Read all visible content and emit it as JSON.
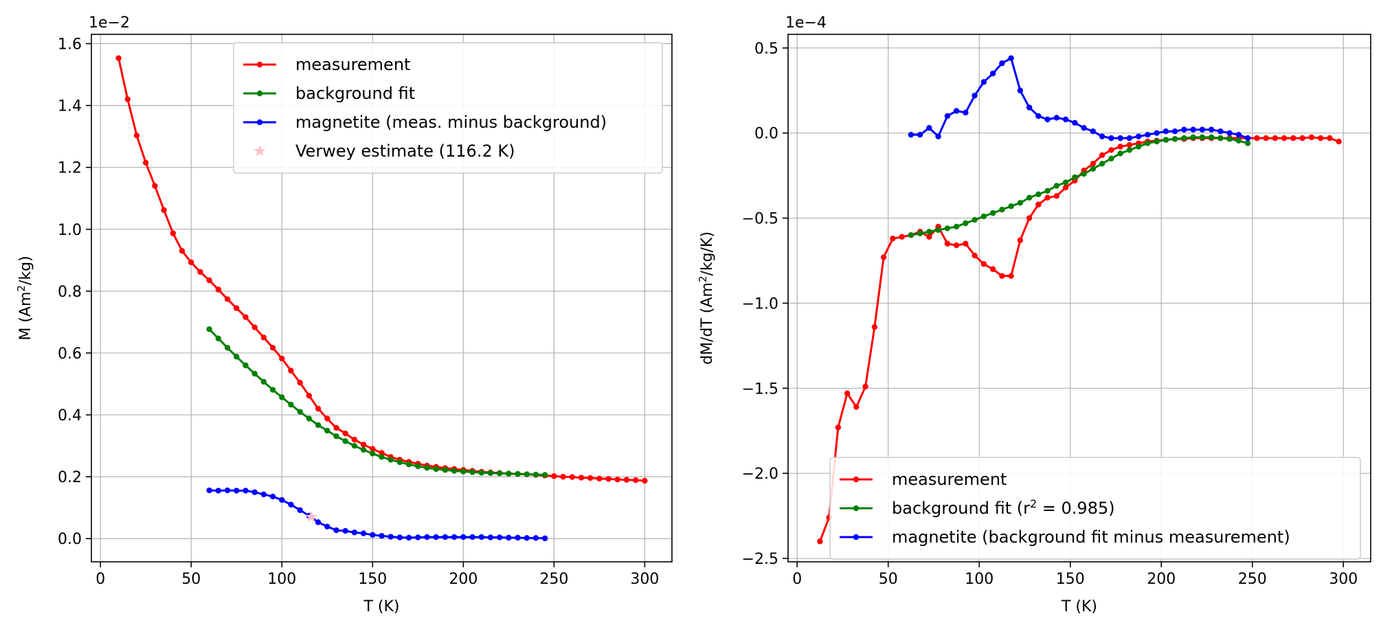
{
  "chart_data": [
    {
      "type": "line",
      "xlabel": "T (K)",
      "ylabel": "M (Am²/kg)",
      "ylabel_main": "M (Am",
      "ylabel_sup": "2",
      "ylabel_tail": "/kg)",
      "offset_label": "1e−2",
      "xlim": [
        -5,
        315
      ],
      "ylim": [
        -0.075,
        1.63
      ],
      "y_scale_note": "values in units of 1e-2",
      "xticks": [
        0,
        50,
        100,
        150,
        200,
        250,
        300
      ],
      "yticks": [
        0.0,
        0.2,
        0.4,
        0.6,
        0.8,
        1.0,
        1.2,
        1.4,
        1.6
      ],
      "ytick_labels": [
        "0.0",
        "0.2",
        "0.4",
        "0.6",
        "0.8",
        "1.0",
        "1.2",
        "1.4",
        "1.6"
      ],
      "grid": true,
      "legend_position": "upper-right",
      "legend_items": [
        {
          "text": "measurement",
          "color": "#ff0000",
          "marker": "line"
        },
        {
          "text": "background fit",
          "color": "#008000",
          "marker": "line"
        },
        {
          "text": "magnetite (meas. minus background)",
          "color": "#0000ff",
          "marker": "line"
        },
        {
          "text": "Verwey estimate (116.2 K)",
          "color": "#ffc0cb",
          "marker": "star"
        }
      ],
      "series": [
        {
          "name": "measurement",
          "color": "#ff0000",
          "x": [
            10,
            15,
            20,
            25,
            30,
            35,
            40,
            45,
            50,
            55,
            60,
            65,
            70,
            75,
            80,
            85,
            90,
            95,
            100,
            105,
            110,
            115,
            120,
            125,
            130,
            135,
            140,
            145,
            150,
            155,
            160,
            165,
            170,
            175,
            180,
            185,
            190,
            195,
            200,
            205,
            210,
            215,
            220,
            225,
            230,
            235,
            240,
            245,
            250,
            255,
            260,
            265,
            270,
            275,
            280,
            285,
            290,
            295,
            300
          ],
          "y": [
            1.553,
            1.42,
            1.303,
            1.215,
            1.14,
            1.062,
            0.987,
            0.93,
            0.893,
            0.862,
            0.835,
            0.805,
            0.774,
            0.745,
            0.716,
            0.683,
            0.65,
            0.617,
            0.582,
            0.543,
            0.504,
            0.462,
            0.42,
            0.388,
            0.358,
            0.34,
            0.32,
            0.304,
            0.29,
            0.277,
            0.264,
            0.255,
            0.248,
            0.242,
            0.236,
            0.232,
            0.228,
            0.225,
            0.222,
            0.219,
            0.216,
            0.214,
            0.212,
            0.21,
            0.209,
            0.208,
            0.206,
            0.204,
            0.202,
            0.2,
            0.199,
            0.197,
            0.196,
            0.194,
            0.193,
            0.191,
            0.19,
            0.189,
            0.187
          ]
        },
        {
          "name": "background fit",
          "color": "#008000",
          "x": [
            60,
            65,
            70,
            75,
            80,
            85,
            90,
            95,
            100,
            105,
            110,
            115,
            120,
            125,
            130,
            135,
            140,
            145,
            150,
            155,
            160,
            165,
            170,
            175,
            180,
            185,
            190,
            195,
            200,
            205,
            210,
            215,
            220,
            225,
            230,
            235,
            240,
            245
          ],
          "y": [
            0.677,
            0.647,
            0.617,
            0.588,
            0.56,
            0.533,
            0.507,
            0.481,
            0.457,
            0.433,
            0.41,
            0.388,
            0.367,
            0.349,
            0.331,
            0.315,
            0.3,
            0.287,
            0.275,
            0.264,
            0.255,
            0.247,
            0.24,
            0.234,
            0.229,
            0.225,
            0.222,
            0.219,
            0.217,
            0.215,
            0.213,
            0.212,
            0.211,
            0.21,
            0.209,
            0.208,
            0.207,
            0.206
          ]
        },
        {
          "name": "magnetite (meas. minus background)",
          "color": "#0000ff",
          "x": [
            60,
            65,
            70,
            75,
            80,
            85,
            90,
            95,
            100,
            105,
            110,
            115,
            120,
            125,
            130,
            135,
            140,
            145,
            150,
            155,
            160,
            165,
            170,
            175,
            180,
            185,
            190,
            195,
            200,
            205,
            210,
            215,
            220,
            225,
            230,
            235,
            240,
            245
          ],
          "y": [
            0.156,
            0.155,
            0.156,
            0.155,
            0.155,
            0.15,
            0.143,
            0.136,
            0.125,
            0.11,
            0.092,
            0.074,
            0.053,
            0.039,
            0.027,
            0.025,
            0.02,
            0.017,
            0.012,
            0.009,
            0.006,
            0.004,
            0.003,
            0.004,
            0.005,
            0.005,
            0.005,
            0.005,
            0.005,
            0.005,
            0.005,
            0.004,
            0.004,
            0.003,
            0.003,
            0.002,
            0.002,
            0.001
          ]
        },
        {
          "name": "Verwey estimate (116.2 K)",
          "color": "#ffc0cb",
          "marker": "star",
          "x": [
            116.2
          ],
          "y": [
            0.07
          ]
        }
      ]
    },
    {
      "type": "line",
      "xlabel": "T (K)",
      "ylabel": "dM/dT (Am²/kg/K)",
      "ylabel_main": "dM/dT (Am",
      "ylabel_sup": "2",
      "ylabel_tail": "/kg/K)",
      "offset_label": "1e−4",
      "xlim": [
        -5,
        315
      ],
      "ylim": [
        -2.52,
        0.58
      ],
      "y_scale_note": "values in units of 1e-4",
      "xticks": [
        0,
        50,
        100,
        150,
        200,
        250,
        300
      ],
      "yticks": [
        -2.5,
        -2.0,
        -1.5,
        -1.0,
        -0.5,
        0.0,
        0.5
      ],
      "ytick_labels": [
        "−2.5",
        "−2.0",
        "−1.5",
        "−1.0",
        "−0.5",
        "0.0",
        "0.5"
      ],
      "grid": true,
      "legend_position": "lower-right",
      "legend_items": [
        {
          "text": "measurement",
          "color": "#ff0000",
          "marker": "line"
        },
        {
          "text_main": "background fit (r",
          "text_sup": "2",
          "text_tail": " = 0.985)",
          "color": "#008000",
          "marker": "line"
        },
        {
          "text": "magnetite (background fit minus measurement)",
          "color": "#0000ff",
          "marker": "line"
        }
      ],
      "series": [
        {
          "name": "measurement",
          "color": "#ff0000",
          "x": [
            12.5,
            17.5,
            22.5,
            27.5,
            32.5,
            37.5,
            42.5,
            47.5,
            52.5,
            57.5,
            62.5,
            67.5,
            72.5,
            77.5,
            82.5,
            87.5,
            92.5,
            97.5,
            102.5,
            107.5,
            112.5,
            117.5,
            122.5,
            127.5,
            132.5,
            137.5,
            142.5,
            147.5,
            152.5,
            157.5,
            162.5,
            167.5,
            172.5,
            177.5,
            182.5,
            187.5,
            192.5,
            197.5,
            202.5,
            207.5,
            212.5,
            217.5,
            222.5,
            227.5,
            232.5,
            237.5,
            242.5,
            247.5,
            252.5,
            257.5,
            262.5,
            267.5,
            272.5,
            277.5,
            282.5,
            287.5,
            292.5,
            297.5
          ],
          "y": [
            -2.4,
            -2.26,
            -1.73,
            -1.53,
            -1.61,
            -1.49,
            -1.14,
            -0.73,
            -0.62,
            -0.61,
            -0.6,
            -0.58,
            -0.61,
            -0.55,
            -0.65,
            -0.66,
            -0.65,
            -0.72,
            -0.77,
            -0.8,
            -0.84,
            -0.84,
            -0.63,
            -0.5,
            -0.42,
            -0.38,
            -0.37,
            -0.32,
            -0.28,
            -0.22,
            -0.18,
            -0.13,
            -0.1,
            -0.08,
            -0.07,
            -0.06,
            -0.05,
            -0.045,
            -0.04,
            -0.035,
            -0.035,
            -0.03,
            -0.03,
            -0.03,
            -0.03,
            -0.03,
            -0.03,
            -0.03,
            -0.03,
            -0.03,
            -0.03,
            -0.03,
            -0.03,
            -0.03,
            -0.025,
            -0.03,
            -0.03,
            -0.05
          ]
        },
        {
          "name": "background fit",
          "color": "#008000",
          "x": [
            62.5,
            67.5,
            72.5,
            77.5,
            82.5,
            87.5,
            92.5,
            97.5,
            102.5,
            107.5,
            112.5,
            117.5,
            122.5,
            127.5,
            132.5,
            137.5,
            142.5,
            147.5,
            152.5,
            157.5,
            162.5,
            167.5,
            172.5,
            177.5,
            182.5,
            187.5,
            192.5,
            197.5,
            202.5,
            207.5,
            212.5,
            217.5,
            222.5,
            227.5,
            232.5,
            237.5,
            242.5,
            247.5
          ],
          "y": [
            -0.6,
            -0.59,
            -0.58,
            -0.57,
            -0.56,
            -0.55,
            -0.53,
            -0.51,
            -0.49,
            -0.47,
            -0.45,
            -0.43,
            -0.41,
            -0.38,
            -0.36,
            -0.34,
            -0.31,
            -0.29,
            -0.26,
            -0.24,
            -0.21,
            -0.18,
            -0.15,
            -0.12,
            -0.1,
            -0.08,
            -0.06,
            -0.05,
            -0.04,
            -0.035,
            -0.03,
            -0.025,
            -0.025,
            -0.025,
            -0.03,
            -0.035,
            -0.045,
            -0.06
          ]
        },
        {
          "name": "magnetite (background fit minus measurement)",
          "color": "#0000ff",
          "x": [
            62.5,
            67.5,
            72.5,
            77.5,
            82.5,
            87.5,
            92.5,
            97.5,
            102.5,
            107.5,
            112.5,
            117.5,
            122.5,
            127.5,
            132.5,
            137.5,
            142.5,
            147.5,
            152.5,
            157.5,
            162.5,
            167.5,
            172.5,
            177.5,
            182.5,
            187.5,
            192.5,
            197.5,
            202.5,
            207.5,
            212.5,
            217.5,
            222.5,
            227.5,
            232.5,
            237.5,
            242.5,
            247.5
          ],
          "y": [
            -0.01,
            -0.01,
            0.03,
            -0.02,
            0.1,
            0.13,
            0.12,
            0.22,
            0.3,
            0.35,
            0.41,
            0.44,
            0.25,
            0.15,
            0.1,
            0.08,
            0.09,
            0.08,
            0.06,
            0.03,
            0.01,
            -0.02,
            -0.03,
            -0.03,
            -0.03,
            -0.02,
            -0.01,
            0.0,
            0.01,
            0.01,
            0.02,
            0.02,
            0.02,
            0.02,
            0.01,
            0.0,
            -0.01,
            -0.03
          ]
        }
      ]
    }
  ]
}
